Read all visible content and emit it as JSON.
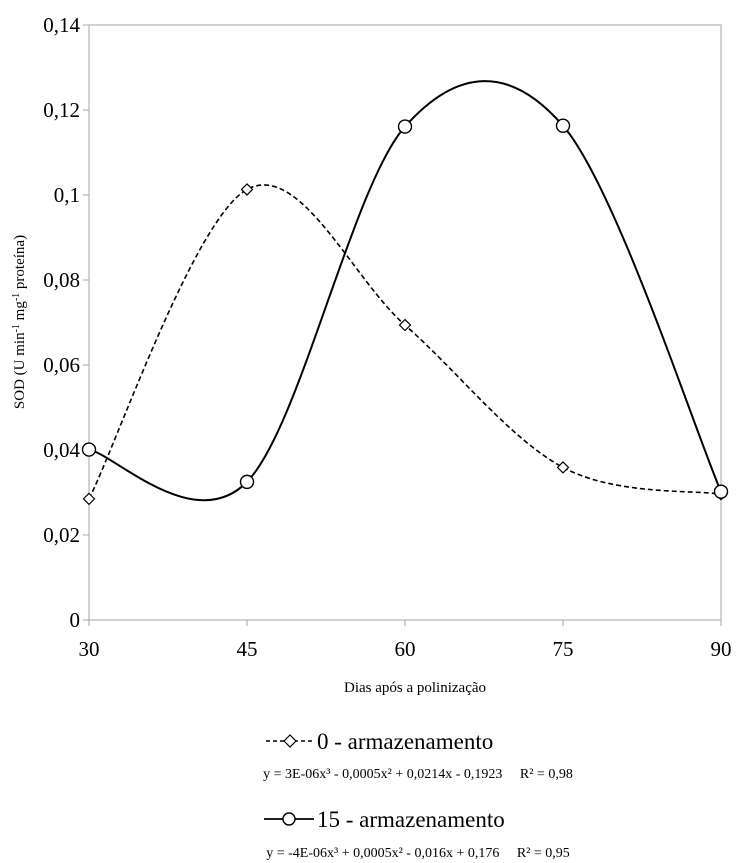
{
  "chart_data": {
    "type": "line",
    "xlabel": "Dias após a polinização",
    "ylabel": "SOD (U min-1 mg-1 proteína)",
    "ylabel_parts": {
      "pre": "SOD (U min",
      "sup1": "-1",
      "mid": " mg",
      "sup2": "-1",
      "post": " proteína)"
    },
    "xlim": [
      30,
      90
    ],
    "ylim": [
      0,
      0.14
    ],
    "x_ticks": [
      30,
      45,
      60,
      75,
      90
    ],
    "x_tick_labels": [
      "30",
      "45",
      "60",
      "75",
      "90"
    ],
    "y_ticks": [
      0,
      0.02,
      0.04,
      0.06,
      0.08,
      0.1,
      0.12,
      0.14
    ],
    "y_tick_labels": [
      "0",
      "0,02",
      "0,04",
      "0,06",
      "0,08",
      "0,1",
      "0,12",
      "0,14"
    ],
    "grid": false,
    "legend_position": "bottom",
    "series": [
      {
        "name": "0 - armazenamento",
        "marker": "diamond",
        "line_style": "dashed",
        "color": "#000000",
        "x": [
          30,
          45,
          60,
          75,
          90
        ],
        "y": [
          0.0285,
          0.1013,
          0.0694,
          0.0359,
          0.0296
        ],
        "equation": "y = 3E-06x³ - 0,0005x² + 0,0214x - 0,1923",
        "r2": "R² = 0,98"
      },
      {
        "name": "15 - armazenamento",
        "marker": "circle",
        "line_style": "solid",
        "color": "#000000",
        "x": [
          30,
          45,
          60,
          75,
          90
        ],
        "y": [
          0.0401,
          0.0325,
          0.1161,
          0.1163,
          0.0302
        ],
        "equation": "y = -4E-06x³ + 0,0005x² - 0,016x + 0,176",
        "r2": "R² = 0,95"
      }
    ]
  }
}
